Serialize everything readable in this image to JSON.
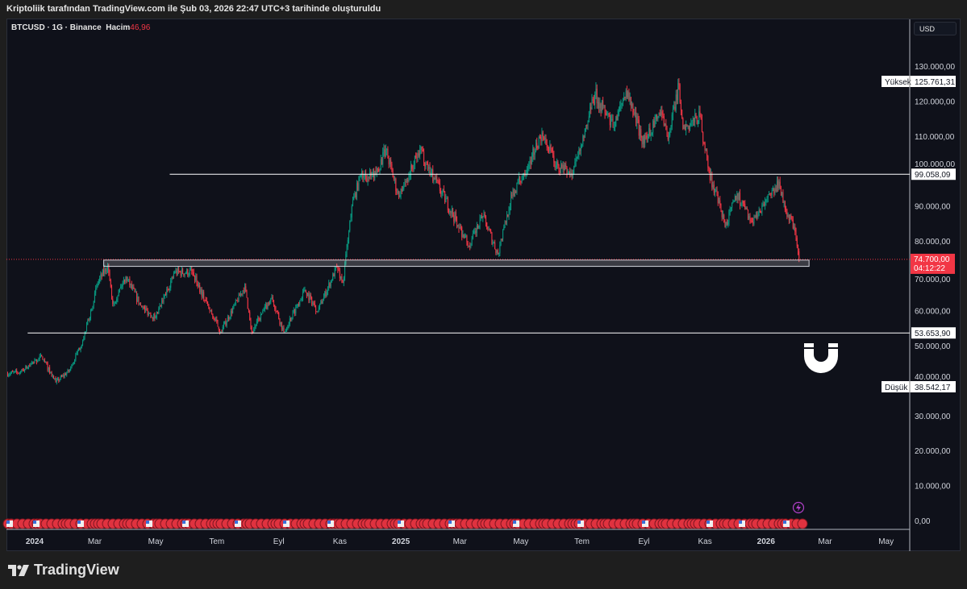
{
  "caption": "Kriptoliik tarafından TradingView.com ile Şub 03, 2026 22:47 UTC+3 tarihinde oluşturuldu",
  "legend": {
    "symbol": "BTCUSD · 1G · Binance",
    "volume_label": "Hacim",
    "volume_value": "46,96"
  },
  "currency_button": "USD",
  "brand": "TradingView",
  "colors": {
    "up": "#089981",
    "down": "#f23645",
    "background": "#0f111a",
    "line": "#ffffff"
  },
  "chart_data": {
    "type": "candlestick",
    "symbol": "BTCUSD",
    "interval": "1G",
    "exchange": "Binance",
    "y_ticks": [
      "130.000,00",
      "120.000,00",
      "110.000,00",
      "100.000,00",
      "90.000,00",
      "80.000,00",
      "70.000,00",
      "60.000,00",
      "50.000,00",
      "40.000,00",
      "30.000,00",
      "20.000,00",
      "10.000,00",
      "0,00"
    ],
    "y_tick_values": [
      130000,
      120000,
      110000,
      100000,
      90000,
      80000,
      70000,
      60000,
      50000,
      40000,
      30000,
      20000,
      10000,
      0
    ],
    "x_ticks": [
      {
        "label": "2024",
        "date": "2024-01-01"
      },
      {
        "label": "Mar",
        "date": "2024-03-01"
      },
      {
        "label": "May",
        "date": "2024-05-01"
      },
      {
        "label": "Tem",
        "date": "2024-07-01"
      },
      {
        "label": "Eyl",
        "date": "2024-09-01"
      },
      {
        "label": "Kas",
        "date": "2024-11-01"
      },
      {
        "label": "2025",
        "date": "2025-01-01"
      },
      {
        "label": "Mar",
        "date": "2025-03-01"
      },
      {
        "label": "May",
        "date": "2025-05-01"
      },
      {
        "label": "Tem",
        "date": "2025-07-01"
      },
      {
        "label": "Eyl",
        "date": "2025-09-01"
      },
      {
        "label": "Kas",
        "date": "2025-11-01"
      },
      {
        "label": "2026",
        "date": "2026-01-01"
      },
      {
        "label": "Mar",
        "date": "2026-03-01"
      },
      {
        "label": "May",
        "date": "2026-05-01"
      }
    ],
    "approx_closes": [
      [
        "2023-12-04",
        42000
      ],
      [
        "2023-12-18",
        42500
      ],
      [
        "2024-01-08",
        46900
      ],
      [
        "2024-01-22",
        39500
      ],
      [
        "2024-02-05",
        43000
      ],
      [
        "2024-02-19",
        52000
      ],
      [
        "2024-03-04",
        68000
      ],
      [
        "2024-03-14",
        73000
      ],
      [
        "2024-03-19",
        62000
      ],
      [
        "2024-04-01",
        69700
      ],
      [
        "2024-04-17",
        61000
      ],
      [
        "2024-05-01",
        58000
      ],
      [
        "2024-05-20",
        71000
      ],
      [
        "2024-06-07",
        71000
      ],
      [
        "2024-06-24",
        60000
      ],
      [
        "2024-07-05",
        54000
      ],
      [
        "2024-07-29",
        67000
      ],
      [
        "2024-08-05",
        54000
      ],
      [
        "2024-08-25",
        64000
      ],
      [
        "2024-09-06",
        53900
      ],
      [
        "2024-09-27",
        66000
      ],
      [
        "2024-10-10",
        60000
      ],
      [
        "2024-10-29",
        72500
      ],
      [
        "2024-11-04",
        68000
      ],
      [
        "2024-11-13",
        90000
      ],
      [
        "2024-11-22",
        99000
      ],
      [
        "2024-12-05",
        98000
      ],
      [
        "2024-12-17",
        106000
      ],
      [
        "2024-12-30",
        92500
      ],
      [
        "2025-01-20",
        106000
      ],
      [
        "2025-02-03",
        98000
      ],
      [
        "2025-02-25",
        86000
      ],
      [
        "2025-03-10",
        78500
      ],
      [
        "2025-03-24",
        87000
      ],
      [
        "2025-04-08",
        76300
      ],
      [
        "2025-04-22",
        93000
      ],
      [
        "2025-05-12",
        104000
      ],
      [
        "2025-05-22",
        111000
      ],
      [
        "2025-06-05",
        101500
      ],
      [
        "2025-06-22",
        99000
      ],
      [
        "2025-07-03",
        109500
      ],
      [
        "2025-07-14",
        122000
      ],
      [
        "2025-08-02",
        112500
      ],
      [
        "2025-08-14",
        123000
      ],
      [
        "2025-09-01",
        108000
      ],
      [
        "2025-09-18",
        117000
      ],
      [
        "2025-09-25",
        109000
      ],
      [
        "2025-10-06",
        124700
      ],
      [
        "2025-10-10",
        112000
      ],
      [
        "2025-10-27",
        115500
      ],
      [
        "2025-11-04",
        101000
      ],
      [
        "2025-11-21",
        84000
      ],
      [
        "2025-12-03",
        93500
      ],
      [
        "2025-12-18",
        85500
      ],
      [
        "2026-01-05",
        93500
      ],
      [
        "2026-01-14",
        96900
      ],
      [
        "2026-01-20",
        89000
      ],
      [
        "2026-01-29",
        84000
      ],
      [
        "2026-02-03",
        74700
      ]
    ],
    "last_price": {
      "value": 74700,
      "label": "74.700,00",
      "countdown": "04:12:22"
    },
    "high": {
      "label": "Yüksek",
      "value": "125.761,31"
    },
    "low": {
      "label": "Düşük",
      "value": "38.542,17"
    },
    "horizontal_lines": [
      {
        "price": 99058.09,
        "label": "99.058,09",
        "start": "2024-05-15"
      },
      {
        "price": 53653.9,
        "label": "53.653,90",
        "start": "2023-12-25"
      }
    ],
    "zone": {
      "top": 74500,
      "bottom": 72700,
      "start": "2024-03-10",
      "end": "2026-02-13"
    }
  }
}
